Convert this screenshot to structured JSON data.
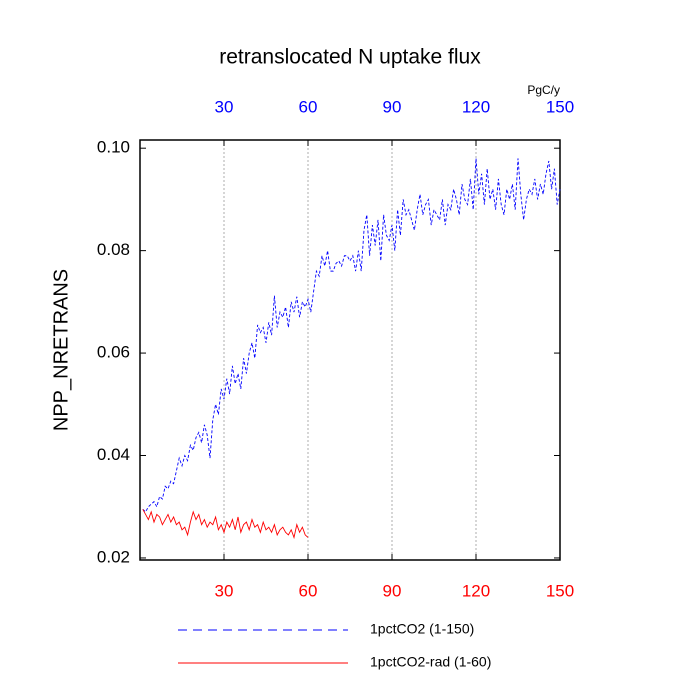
{
  "chart_data": {
    "type": "line",
    "title": "retranslocated N uptake flux",
    "ylabel": "NPP_NRETRANS",
    "top_axis_label": "PgC/y",
    "xlim": [
      0,
      150
    ],
    "xticks": [
      30,
      60,
      90,
      120,
      150
    ],
    "ylim": [
      0.0196,
      0.1016
    ],
    "yticks": [
      0.02,
      0.04,
      0.06,
      0.08,
      {
        "value": 0.1,
        "label": "0.10"
      }
    ],
    "grid": true,
    "bottom_axis_color": "red",
    "top_axis_color": "blue",
    "series": [
      {
        "name": "1pctCO2 (1-150)",
        "color": "blue",
        "dash": "dashed",
        "x": [
          1,
          2,
          3,
          4,
          5,
          6,
          7,
          8,
          9,
          10,
          11,
          12,
          13,
          14,
          15,
          16,
          17,
          18,
          19,
          20,
          21,
          22,
          23,
          24,
          25,
          26,
          27,
          28,
          29,
          30,
          31,
          32,
          33,
          34,
          35,
          36,
          37,
          38,
          39,
          40,
          41,
          42,
          43,
          44,
          45,
          46,
          47,
          48,
          49,
          50,
          51,
          52,
          53,
          54,
          55,
          56,
          57,
          58,
          59,
          60,
          61,
          62,
          63,
          64,
          65,
          66,
          67,
          68,
          69,
          70,
          71,
          72,
          73,
          74,
          75,
          76,
          77,
          78,
          79,
          80,
          81,
          82,
          83,
          84,
          85,
          86,
          87,
          88,
          89,
          90,
          91,
          92,
          93,
          94,
          95,
          96,
          97,
          98,
          99,
          100,
          101,
          102,
          103,
          104,
          105,
          106,
          107,
          108,
          109,
          110,
          111,
          112,
          113,
          114,
          115,
          116,
          117,
          118,
          119,
          120,
          121,
          122,
          123,
          124,
          125,
          126,
          127,
          128,
          129,
          130,
          131,
          132,
          133,
          134,
          135,
          136,
          137,
          138,
          139,
          140,
          141,
          142,
          143,
          144,
          145,
          146,
          147,
          148,
          149,
          150
        ],
        "values": [
          0.0295,
          0.029,
          0.03,
          0.0305,
          0.031,
          0.03,
          0.032,
          0.0315,
          0.034,
          0.0335,
          0.035,
          0.0345,
          0.037,
          0.0395,
          0.038,
          0.04,
          0.039,
          0.042,
          0.041,
          0.0435,
          0.0445,
          0.0425,
          0.046,
          0.044,
          0.0395,
          0.047,
          0.05,
          0.048,
          0.053,
          0.051,
          0.055,
          0.052,
          0.0575,
          0.054,
          0.056,
          0.053,
          0.059,
          0.056,
          0.06,
          0.062,
          0.059,
          0.0655,
          0.064,
          0.065,
          0.062,
          0.066,
          0.0635,
          0.0712,
          0.065,
          0.068,
          0.067,
          0.069,
          0.065,
          0.07,
          0.068,
          0.071,
          0.067,
          0.07,
          0.069,
          0.0705,
          0.068,
          0.072,
          0.076,
          0.075,
          0.079,
          0.077,
          0.08,
          0.076,
          0.076,
          0.0775,
          0.078,
          0.077,
          0.079,
          0.079,
          0.078,
          0.079,
          0.076,
          0.08,
          0.076,
          0.084,
          0.087,
          0.079,
          0.085,
          0.081,
          0.086,
          0.078,
          0.087,
          0.083,
          0.082,
          0.085,
          0.08,
          0.088,
          0.083,
          0.09,
          0.087,
          0.088,
          0.086,
          0.084,
          0.088,
          0.091,
          0.087,
          0.089,
          0.09,
          0.085,
          0.088,
          0.087,
          0.086,
          0.09,
          0.085,
          0.089,
          0.088,
          0.092,
          0.09,
          0.087,
          0.093,
          0.09,
          0.089,
          0.094,
          0.088,
          0.098,
          0.091,
          0.095,
          0.089,
          0.096,
          0.09,
          0.092,
          0.088,
          0.094,
          0.089,
          0.087,
          0.092,
          0.09,
          0.093,
          0.088,
          0.098,
          0.091,
          0.086,
          0.09,
          0.092,
          0.091,
          0.094,
          0.09,
          0.093,
          0.091,
          0.095,
          0.0975,
          0.092,
          0.096,
          0.089,
          0.092
        ]
      },
      {
        "name": "1pctCO2-rad (1-60)",
        "color": "red",
        "dash": "solid",
        "x": [
          1,
          2,
          3,
          4,
          5,
          6,
          7,
          8,
          9,
          10,
          11,
          12,
          13,
          14,
          15,
          16,
          17,
          18,
          19,
          20,
          21,
          22,
          23,
          24,
          25,
          26,
          27,
          28,
          29,
          30,
          31,
          32,
          33,
          34,
          35,
          36,
          37,
          38,
          39,
          40,
          41,
          42,
          43,
          44,
          45,
          46,
          47,
          48,
          49,
          50,
          51,
          52,
          53,
          54,
          55,
          56,
          57,
          58,
          59,
          60
        ],
        "values": [
          0.0295,
          0.0285,
          0.0275,
          0.029,
          0.027,
          0.0285,
          0.028,
          0.0265,
          0.0275,
          0.0285,
          0.027,
          0.028,
          0.0265,
          0.027,
          0.0255,
          0.026,
          0.0245,
          0.027,
          0.029,
          0.0275,
          0.0285,
          0.0265,
          0.0275,
          0.026,
          0.027,
          0.0265,
          0.028,
          0.0255,
          0.0265,
          0.025,
          0.027,
          0.026,
          0.0275,
          0.0255,
          0.028,
          0.025,
          0.0265,
          0.027,
          0.0255,
          0.0275,
          0.026,
          0.0265,
          0.025,
          0.027,
          0.0255,
          0.026,
          0.025,
          0.0265,
          0.0245,
          0.0255,
          0.026,
          0.025,
          0.0245,
          0.0255,
          0.024,
          0.0265,
          0.025,
          0.026,
          0.0245,
          0.024
        ]
      }
    ]
  }
}
